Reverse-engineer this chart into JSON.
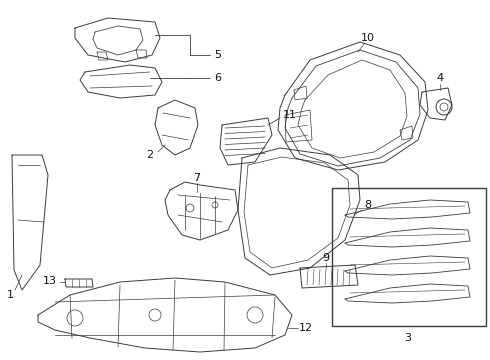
{
  "bg_color": "#ffffff",
  "line_color": "#3a3a3a",
  "lw": 0.7,
  "fig_w": 4.9,
  "fig_h": 3.6,
  "dpi": 100
}
